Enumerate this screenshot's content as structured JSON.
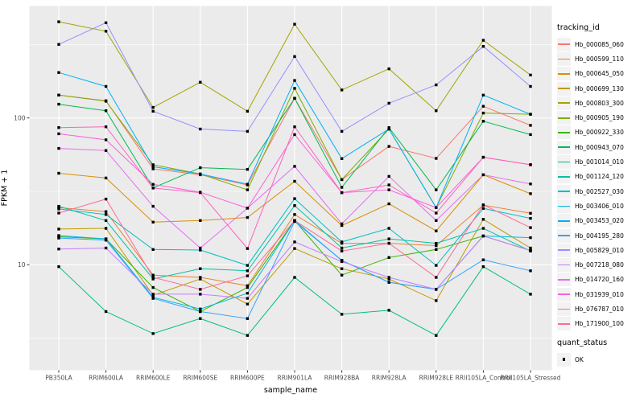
{
  "figure": {
    "x_axis_title": "sample_name",
    "y_axis_title": "FPKM + 1",
    "panel_bg": "#EBEBEB",
    "grid_color": "#FFFFFF",
    "tick_text_color": "#4D4D4D",
    "point_color": "#000000"
  },
  "legend": {
    "tracking_title": "tracking_id",
    "quant_title": "quant_status",
    "quant_ok_label": "OK"
  },
  "chart_data": {
    "type": "line",
    "title": "",
    "xlabel": "sample_name",
    "ylabel": "FPKM + 1",
    "y_scale": "log10",
    "ylim": [
      2,
      575
    ],
    "y_major_ticks": [
      10,
      100
    ],
    "y_minor_ticks": [
      3.162,
      31.62,
      316.2
    ],
    "grid": true,
    "legend_position": "right",
    "point_marker": "black-square",
    "quant_status": "OK",
    "categories": [
      "PB350LA",
      "RRIM600LA",
      "RRIM600LE",
      "RRIM600SE",
      "RRIM600PE",
      "RRIM901LA",
      "RRIM928BA",
      "RRIM928LA",
      "RRIM928LE",
      "RRII105LA_Control",
      "RRII105LA_Stressed"
    ],
    "series": [
      {
        "name": "Hb_000085_060",
        "color": "#F8766D",
        "values": [
          143,
          131,
          45,
          41,
          35,
          136,
          38,
          64,
          53,
          120,
          89
        ]
      },
      {
        "name": "Hb_000599_110",
        "color": "#EA8331",
        "values": [
          24.5,
          23,
          8.5,
          8.2,
          7.2,
          22,
          14,
          14,
          13.5,
          25.5,
          22.4
        ]
      },
      {
        "name": "Hb_000645_050",
        "color": "#D89000",
        "values": [
          42,
          39,
          19.5,
          20,
          21,
          37,
          18.5,
          26,
          17,
          41,
          30.5
        ]
      },
      {
        "name": "Hb_000699_130",
        "color": "#C09B00",
        "values": [
          17.5,
          17.7,
          6.2,
          8,
          5.4,
          12.9,
          9.4,
          8,
          5.7,
          20.4,
          13
        ]
      },
      {
        "name": "Hb_000803_300",
        "color": "#A3A500",
        "values": [
          452,
          390,
          118,
          175,
          111,
          435,
          155,
          216,
          112,
          338,
          196
        ]
      },
      {
        "name": "Hb_000905_190",
        "color": "#7CAE00",
        "values": [
          143,
          130,
          48,
          41.5,
          32.4,
          159,
          38,
          84,
          24.5,
          108,
          106
        ]
      },
      {
        "name": "Hb_000922_330",
        "color": "#39B600",
        "values": [
          15.5,
          15,
          7,
          4.8,
          7,
          20,
          8.5,
          11.2,
          12.7,
          15.7,
          12.5
        ]
      },
      {
        "name": "Hb_000943_070",
        "color": "#00BB4E",
        "values": [
          124,
          112,
          33.4,
          45.8,
          44.6,
          136,
          33.7,
          86,
          32.4,
          95,
          77
        ]
      },
      {
        "name": "Hb_001014_010",
        "color": "#00BF7D",
        "values": [
          9.7,
          4.8,
          3.4,
          4.3,
          3.3,
          8.2,
          4.6,
          4.9,
          3.3,
          9.7,
          6.3
        ]
      },
      {
        "name": "Hb_001124_120",
        "color": "#00C1A3",
        "values": [
          25,
          20,
          8,
          9.4,
          9.1,
          25.3,
          13,
          15,
          14,
          17.7,
          12.4
        ]
      },
      {
        "name": "Hb_002527_030",
        "color": "#00BFC4",
        "values": [
          24,
          22,
          12.7,
          12.6,
          9.9,
          28.2,
          14.3,
          17.7,
          9.9,
          24.2,
          20.7
        ]
      },
      {
        "name": "Hb_003406_010",
        "color": "#00BADE",
        "values": [
          15.8,
          15,
          6,
          5,
          6.4,
          20,
          10.7,
          7.6,
          6.8,
          15.7,
          15.3
        ]
      },
      {
        "name": "Hb_003453_020",
        "color": "#00B0F6",
        "values": [
          204,
          164,
          46.5,
          41.5,
          35.4,
          180,
          52.8,
          84,
          24.5,
          143,
          106
        ]
      },
      {
        "name": "Hb_004195_280",
        "color": "#35A2FF",
        "values": [
          15.2,
          14.7,
          5.9,
          4.8,
          4.3,
          19.7,
          10.7,
          7.6,
          6.8,
          10.8,
          9.1
        ]
      },
      {
        "name": "Hb_005829_010",
        "color": "#9590FF",
        "values": [
          317,
          445,
          111,
          84,
          81,
          262,
          81,
          126,
          168,
          307,
          164
        ]
      },
      {
        "name": "Hb_007218_080",
        "color": "#C77CFF",
        "values": [
          12.8,
          13,
          6.3,
          6.3,
          5.9,
          14.3,
          10.5,
          8.2,
          6.8,
          15.7,
          12.5
        ]
      },
      {
        "name": "Hb_014720_160",
        "color": "#E76BF3",
        "values": [
          62,
          60,
          25,
          13,
          24.3,
          46.8,
          19,
          40,
          20,
          41,
          35.5
        ]
      },
      {
        "name": "Hb_031939_010",
        "color": "#FA62DB",
        "values": [
          78,
          71,
          35.3,
          31.2,
          24.3,
          77,
          31,
          32.4,
          24.5,
          54,
          48
        ]
      },
      {
        "name": "Hb_076787_010",
        "color": "#FF62BC",
        "values": [
          86,
          87,
          33.3,
          31,
          12.9,
          87,
          31,
          35,
          22.5,
          54,
          48
        ]
      },
      {
        "name": "Hb_171900_100",
        "color": "#FF6A98",
        "values": [
          22.5,
          28,
          8.2,
          6.8,
          8.4,
          20,
          12.4,
          14,
          8.2,
          25.6,
          17.9
        ]
      }
    ]
  }
}
